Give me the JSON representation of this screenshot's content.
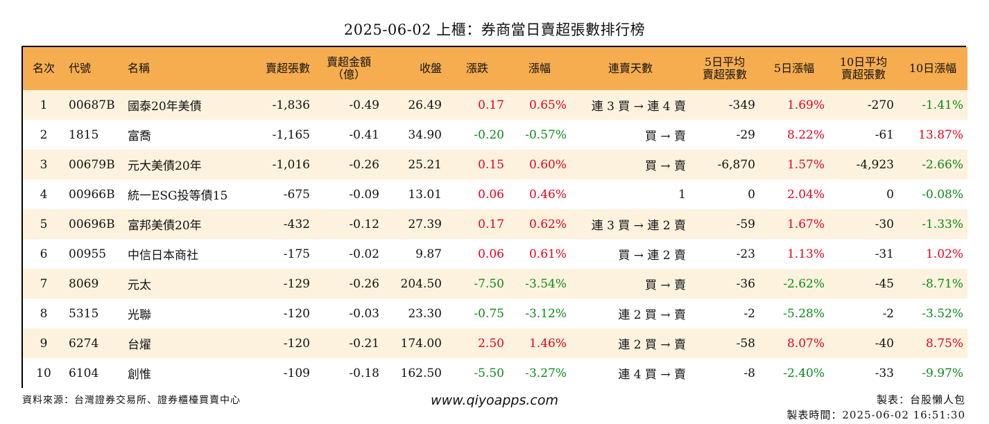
{
  "title": "2025-06-02 上櫃：券商當日賣超張數排行榜",
  "colors": {
    "header_bg": "#f6ad4f",
    "row_alt": "#fdf2de",
    "up": "#e8001c",
    "down": "#0a8a16"
  },
  "headers": [
    {
      "l1": "名次"
    },
    {
      "l1": "代號"
    },
    {
      "l1": "名稱"
    },
    {
      "l1": "賣超張數"
    },
    {
      "l1": "賣超金額",
      "l2": "（億）"
    },
    {
      "l1": "收盤"
    },
    {
      "l1": "漲跌"
    },
    {
      "l1": "漲幅"
    },
    {
      "l1": "連賣天數"
    },
    {
      "l1": "5日平均",
      "l2": "賣超張數"
    },
    {
      "l1": "5日漲幅"
    },
    {
      "l1": "10日平均",
      "l2": "賣超張數"
    },
    {
      "l1": "10日漲幅"
    }
  ],
  "rows": [
    {
      "rank": "1",
      "code": "00687B",
      "name": "國泰20年美債",
      "sell_qty": "-1,836",
      "sell_amt": "-0.49",
      "close": "26.49",
      "chg": "0.17",
      "chg_dir": "up",
      "pct": "0.65%",
      "pct_dir": "up",
      "streak": "連 3 買 → 連 4 賣",
      "avg5": "-349",
      "pct5": "1.69%",
      "pct5_dir": "up",
      "avg10": "-270",
      "pct10": "-1.41%",
      "pct10_dir": "down"
    },
    {
      "rank": "2",
      "code": "1815",
      "name": "富喬",
      "sell_qty": "-1,165",
      "sell_amt": "-0.41",
      "close": "34.90",
      "chg": "-0.20",
      "chg_dir": "down",
      "pct": "-0.57%",
      "pct_dir": "down",
      "streak": "買 → 賣",
      "avg5": "-29",
      "pct5": "8.22%",
      "pct5_dir": "up",
      "avg10": "-61",
      "pct10": "13.87%",
      "pct10_dir": "up"
    },
    {
      "rank": "3",
      "code": "00679B",
      "name": "元大美債20年",
      "sell_qty": "-1,016",
      "sell_amt": "-0.26",
      "close": "25.21",
      "chg": "0.15",
      "chg_dir": "up",
      "pct": "0.60%",
      "pct_dir": "up",
      "streak": "買 → 賣",
      "avg5": "-6,870",
      "pct5": "1.57%",
      "pct5_dir": "up",
      "avg10": "-4,923",
      "pct10": "-2.66%",
      "pct10_dir": "down"
    },
    {
      "rank": "4",
      "code": "00966B",
      "name": "統一ESG投等債15",
      "sell_qty": "-675",
      "sell_amt": "-0.09",
      "close": "13.01",
      "chg": "0.06",
      "chg_dir": "up",
      "pct": "0.46%",
      "pct_dir": "up",
      "streak": "1",
      "avg5": "0",
      "pct5": "2.04%",
      "pct5_dir": "up",
      "avg10": "0",
      "pct10": "-0.08%",
      "pct10_dir": "down"
    },
    {
      "rank": "5",
      "code": "00696B",
      "name": "富邦美債20年",
      "sell_qty": "-432",
      "sell_amt": "-0.12",
      "close": "27.39",
      "chg": "0.17",
      "chg_dir": "up",
      "pct": "0.62%",
      "pct_dir": "up",
      "streak": "連 3 買 → 連 2 賣",
      "avg5": "-59",
      "pct5": "1.67%",
      "pct5_dir": "up",
      "avg10": "-30",
      "pct10": "-1.33%",
      "pct10_dir": "down"
    },
    {
      "rank": "6",
      "code": "00955",
      "name": "中信日本商社",
      "sell_qty": "-175",
      "sell_amt": "-0.02",
      "close": "9.87",
      "chg": "0.06",
      "chg_dir": "up",
      "pct": "0.61%",
      "pct_dir": "up",
      "streak": "買 → 連 2 賣",
      "avg5": "-23",
      "pct5": "1.13%",
      "pct5_dir": "up",
      "avg10": "-31",
      "pct10": "1.02%",
      "pct10_dir": "up"
    },
    {
      "rank": "7",
      "code": "8069",
      "name": "元太",
      "sell_qty": "-129",
      "sell_amt": "-0.26",
      "close": "204.50",
      "chg": "-7.50",
      "chg_dir": "down",
      "pct": "-3.54%",
      "pct_dir": "down",
      "streak": "買 → 賣",
      "avg5": "-36",
      "pct5": "-2.62%",
      "pct5_dir": "down",
      "avg10": "-45",
      "pct10": "-8.71%",
      "pct10_dir": "down"
    },
    {
      "rank": "8",
      "code": "5315",
      "name": "光聯",
      "sell_qty": "-120",
      "sell_amt": "-0.03",
      "close": "23.30",
      "chg": "-0.75",
      "chg_dir": "down",
      "pct": "-3.12%",
      "pct_dir": "down",
      "streak": "連 2 買 → 賣",
      "avg5": "-2",
      "pct5": "-5.28%",
      "pct5_dir": "down",
      "avg10": "-2",
      "pct10": "-3.52%",
      "pct10_dir": "down"
    },
    {
      "rank": "9",
      "code": "6274",
      "name": "台燿",
      "sell_qty": "-120",
      "sell_amt": "-0.21",
      "close": "174.00",
      "chg": "2.50",
      "chg_dir": "up",
      "pct": "1.46%",
      "pct_dir": "up",
      "streak": "連 2 買 → 賣",
      "avg5": "-58",
      "pct5": "8.07%",
      "pct5_dir": "up",
      "avg10": "-40",
      "pct10": "8.75%",
      "pct10_dir": "up"
    },
    {
      "rank": "10",
      "code": "6104",
      "name": "創惟",
      "sell_qty": "-109",
      "sell_amt": "-0.18",
      "close": "162.50",
      "chg": "-5.50",
      "chg_dir": "down",
      "pct": "-3.27%",
      "pct_dir": "down",
      "streak": "連 4 買 → 賣",
      "avg5": "-8",
      "pct5": "-2.40%",
      "pct5_dir": "down",
      "avg10": "-33",
      "pct10": "-9.97%",
      "pct10_dir": "down"
    }
  ],
  "footer": {
    "source": "資料來源：台灣證券交易所、證券櫃檯買賣中心",
    "website": "www.qiyoapps.com",
    "maker": "製表：台股懶人包",
    "made_time": "製表時間：2025-06-02 16:51:30"
  }
}
